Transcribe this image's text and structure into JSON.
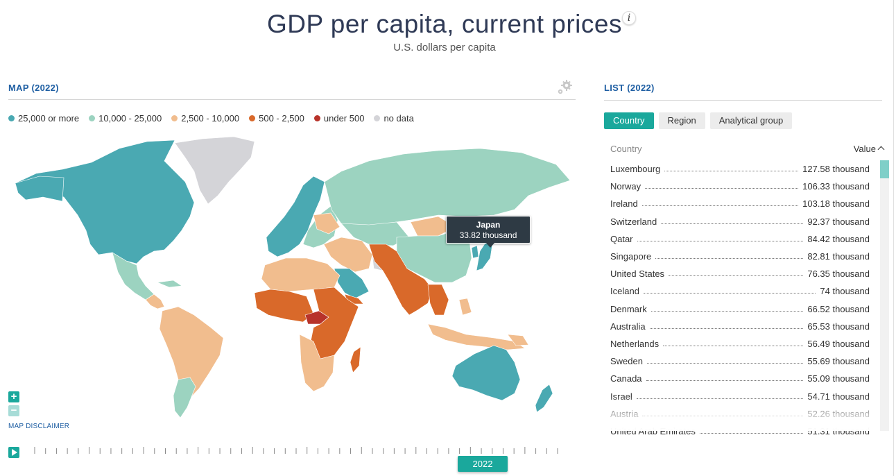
{
  "header": {
    "title": "GDP per capita, current prices",
    "info_icon": "info-icon",
    "info_label": "i",
    "subtitle": "U.S. dollars per capita"
  },
  "map": {
    "panel_title": "MAP (2022)",
    "settings_icon": "gear-icon",
    "legend": [
      {
        "label": "25,000 or more",
        "color": "#4aa9b2"
      },
      {
        "label": "10,000 - 25,000",
        "color": "#9cd3c0"
      },
      {
        "label": "2,500 - 10,000",
        "color": "#f1bd8e"
      },
      {
        "label": "500 - 2,500",
        "color": "#d9692a"
      },
      {
        "label": "under 500",
        "color": "#b8332a"
      },
      {
        "label": "no data",
        "color": "#d4d4d8"
      }
    ],
    "tooltip": {
      "name": "Japan",
      "value": "33.82 thousand"
    },
    "zoom_in": "+",
    "zoom_out": "−",
    "disclaimer": "MAP DISCLAIMER",
    "selected_year": "2022",
    "play_icon": "play-icon"
  },
  "list": {
    "panel_title": "LIST (2022)",
    "tabs": [
      "Country",
      "Region",
      "Analytical group"
    ],
    "active_tab": "Country",
    "col_country": "Country",
    "col_value": "Value",
    "sort_icon": "chevron-up-icon",
    "rows": [
      {
        "name": "Luxembourg",
        "value": "127.58 thousand"
      },
      {
        "name": "Norway",
        "value": "106.33 thousand"
      },
      {
        "name": "Ireland",
        "value": "103.18 thousand"
      },
      {
        "name": "Switzerland",
        "value": "92.37 thousand"
      },
      {
        "name": "Qatar",
        "value": "84.42 thousand"
      },
      {
        "name": "Singapore",
        "value": "82.81 thousand"
      },
      {
        "name": "United States",
        "value": "76.35 thousand"
      },
      {
        "name": "Iceland",
        "value": "74 thousand"
      },
      {
        "name": "Denmark",
        "value": "66.52 thousand"
      },
      {
        "name": "Australia",
        "value": "65.53 thousand"
      },
      {
        "name": "Netherlands",
        "value": "56.49 thousand"
      },
      {
        "name": "Sweden",
        "value": "55.69 thousand"
      },
      {
        "name": "Canada",
        "value": "55.09 thousand"
      },
      {
        "name": "Israel",
        "value": "54.71 thousand"
      },
      {
        "name": "Austria",
        "value": "52.26 thousand"
      },
      {
        "name": "United Arab Emirates",
        "value": "51.31 thousand"
      }
    ]
  }
}
